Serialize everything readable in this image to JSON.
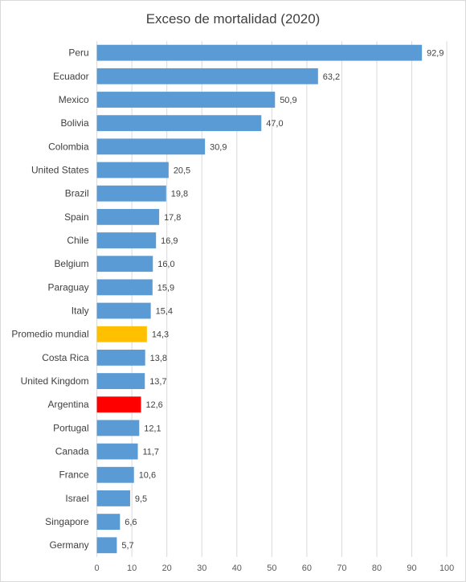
{
  "chart_data": {
    "type": "bar",
    "orientation": "horizontal",
    "title": "Exceso de mortalidad (2020)",
    "xlabel": "",
    "ylabel": "",
    "xlim": [
      0,
      100
    ],
    "x_ticks": [
      "0",
      "10",
      "20",
      "30",
      "40",
      "50",
      "60",
      "70",
      "80",
      "90",
      "100"
    ],
    "grid": true,
    "legend": "none",
    "default_color": "#5b9bd5",
    "categories": [
      "Peru",
      "Ecuador",
      "Mexico",
      "Bolivia",
      "Colombia",
      "United States",
      "Brazil",
      "Spain",
      "Chile",
      "Belgium",
      "Paraguay",
      "Italy",
      "Promedio mundial",
      "Costa Rica",
      "United Kingdom",
      "Argentina",
      "Portugal",
      "Canada",
      "France",
      "Israel",
      "Singapore",
      "Germany"
    ],
    "values": [
      92.9,
      63.2,
      50.9,
      47.0,
      30.9,
      20.5,
      19.8,
      17.8,
      16.9,
      16.0,
      15.9,
      15.4,
      14.3,
      13.8,
      13.7,
      12.6,
      12.1,
      11.7,
      10.6,
      9.5,
      6.6,
      5.7
    ],
    "value_labels": [
      "92,9",
      "63,2",
      "50,9",
      "47,0",
      "30,9",
      "20,5",
      "19,8",
      "17,8",
      "16,9",
      "16,0",
      "15,9",
      "15,4",
      "14,3",
      "13,8",
      "13,7",
      "12,6",
      "12,1",
      "11,7",
      "10,6",
      "9,5",
      "6,6",
      "5,7"
    ],
    "colors": [
      "#5b9bd5",
      "#5b9bd5",
      "#5b9bd5",
      "#5b9bd5",
      "#5b9bd5",
      "#5b9bd5",
      "#5b9bd5",
      "#5b9bd5",
      "#5b9bd5",
      "#5b9bd5",
      "#5b9bd5",
      "#5b9bd5",
      "#ffc000",
      "#5b9bd5",
      "#5b9bd5",
      "#ff0000",
      "#5b9bd5",
      "#5b9bd5",
      "#5b9bd5",
      "#5b9bd5",
      "#5b9bd5",
      "#5b9bd5"
    ]
  }
}
